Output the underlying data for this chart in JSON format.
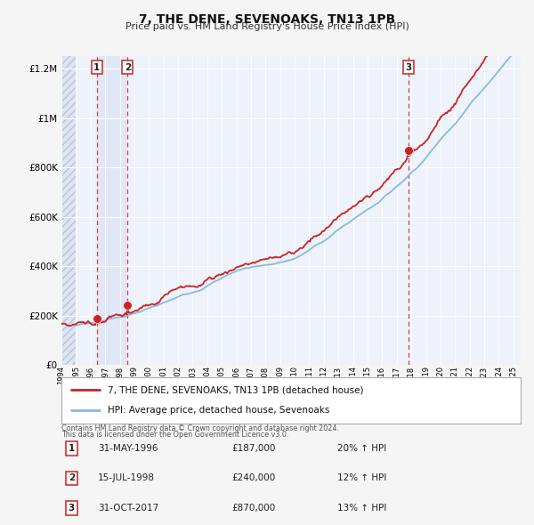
{
  "title": "7, THE DENE, SEVENOAKS, TN13 1PB",
  "subtitle": "Price paid vs. HM Land Registry's House Price Index (HPI)",
  "ylim": [
    0,
    1250000
  ],
  "yticks": [
    0,
    200000,
    400000,
    600000,
    800000,
    1000000,
    1200000
  ],
  "ytick_labels": [
    "£0",
    "£200K",
    "£400K",
    "£600K",
    "£800K",
    "£1M",
    "£1.2M"
  ],
  "background_color": "#f5f5f5",
  "plot_bg_color": "#eef2fa",
  "grid_color": "#ffffff",
  "sale_color": "#cc2222",
  "hpi_color": "#88bbdd",
  "legend_sale_label": "7, THE DENE, SEVENOAKS, TN13 1PB (detached house)",
  "legend_hpi_label": "HPI: Average price, detached house, Sevenoaks",
  "transactions": [
    {
      "num": 1,
      "date_label": "31-MAY-1996",
      "price_label": "£187,000",
      "pct_label": "20% ↑ HPI",
      "year": 1996.42,
      "price": 187000
    },
    {
      "num": 2,
      "date_label": "15-JUL-1998",
      "price_label": "£240,000",
      "pct_label": "12% ↑ HPI",
      "year": 1998.54,
      "price": 240000
    },
    {
      "num": 3,
      "date_label": "31-OCT-2017",
      "price_label": "£870,000",
      "pct_label": "13% ↑ HPI",
      "year": 2017.83,
      "price": 870000
    }
  ],
  "footer1": "Contains HM Land Registry data © Crown copyright and database right 2024.",
  "footer2": "This data is licensed under the Open Government Licence v3.0.",
  "hatch_region_end": 1995.0,
  "xmin": 1994.0,
  "xmax": 2025.5,
  "xtick_years": [
    1994,
    1995,
    1996,
    1997,
    1998,
    1999,
    2000,
    2001,
    2002,
    2003,
    2004,
    2005,
    2006,
    2007,
    2008,
    2009,
    2010,
    2011,
    2012,
    2013,
    2014,
    2015,
    2016,
    2017,
    2018,
    2019,
    2020,
    2021,
    2022,
    2023,
    2024,
    2025
  ]
}
